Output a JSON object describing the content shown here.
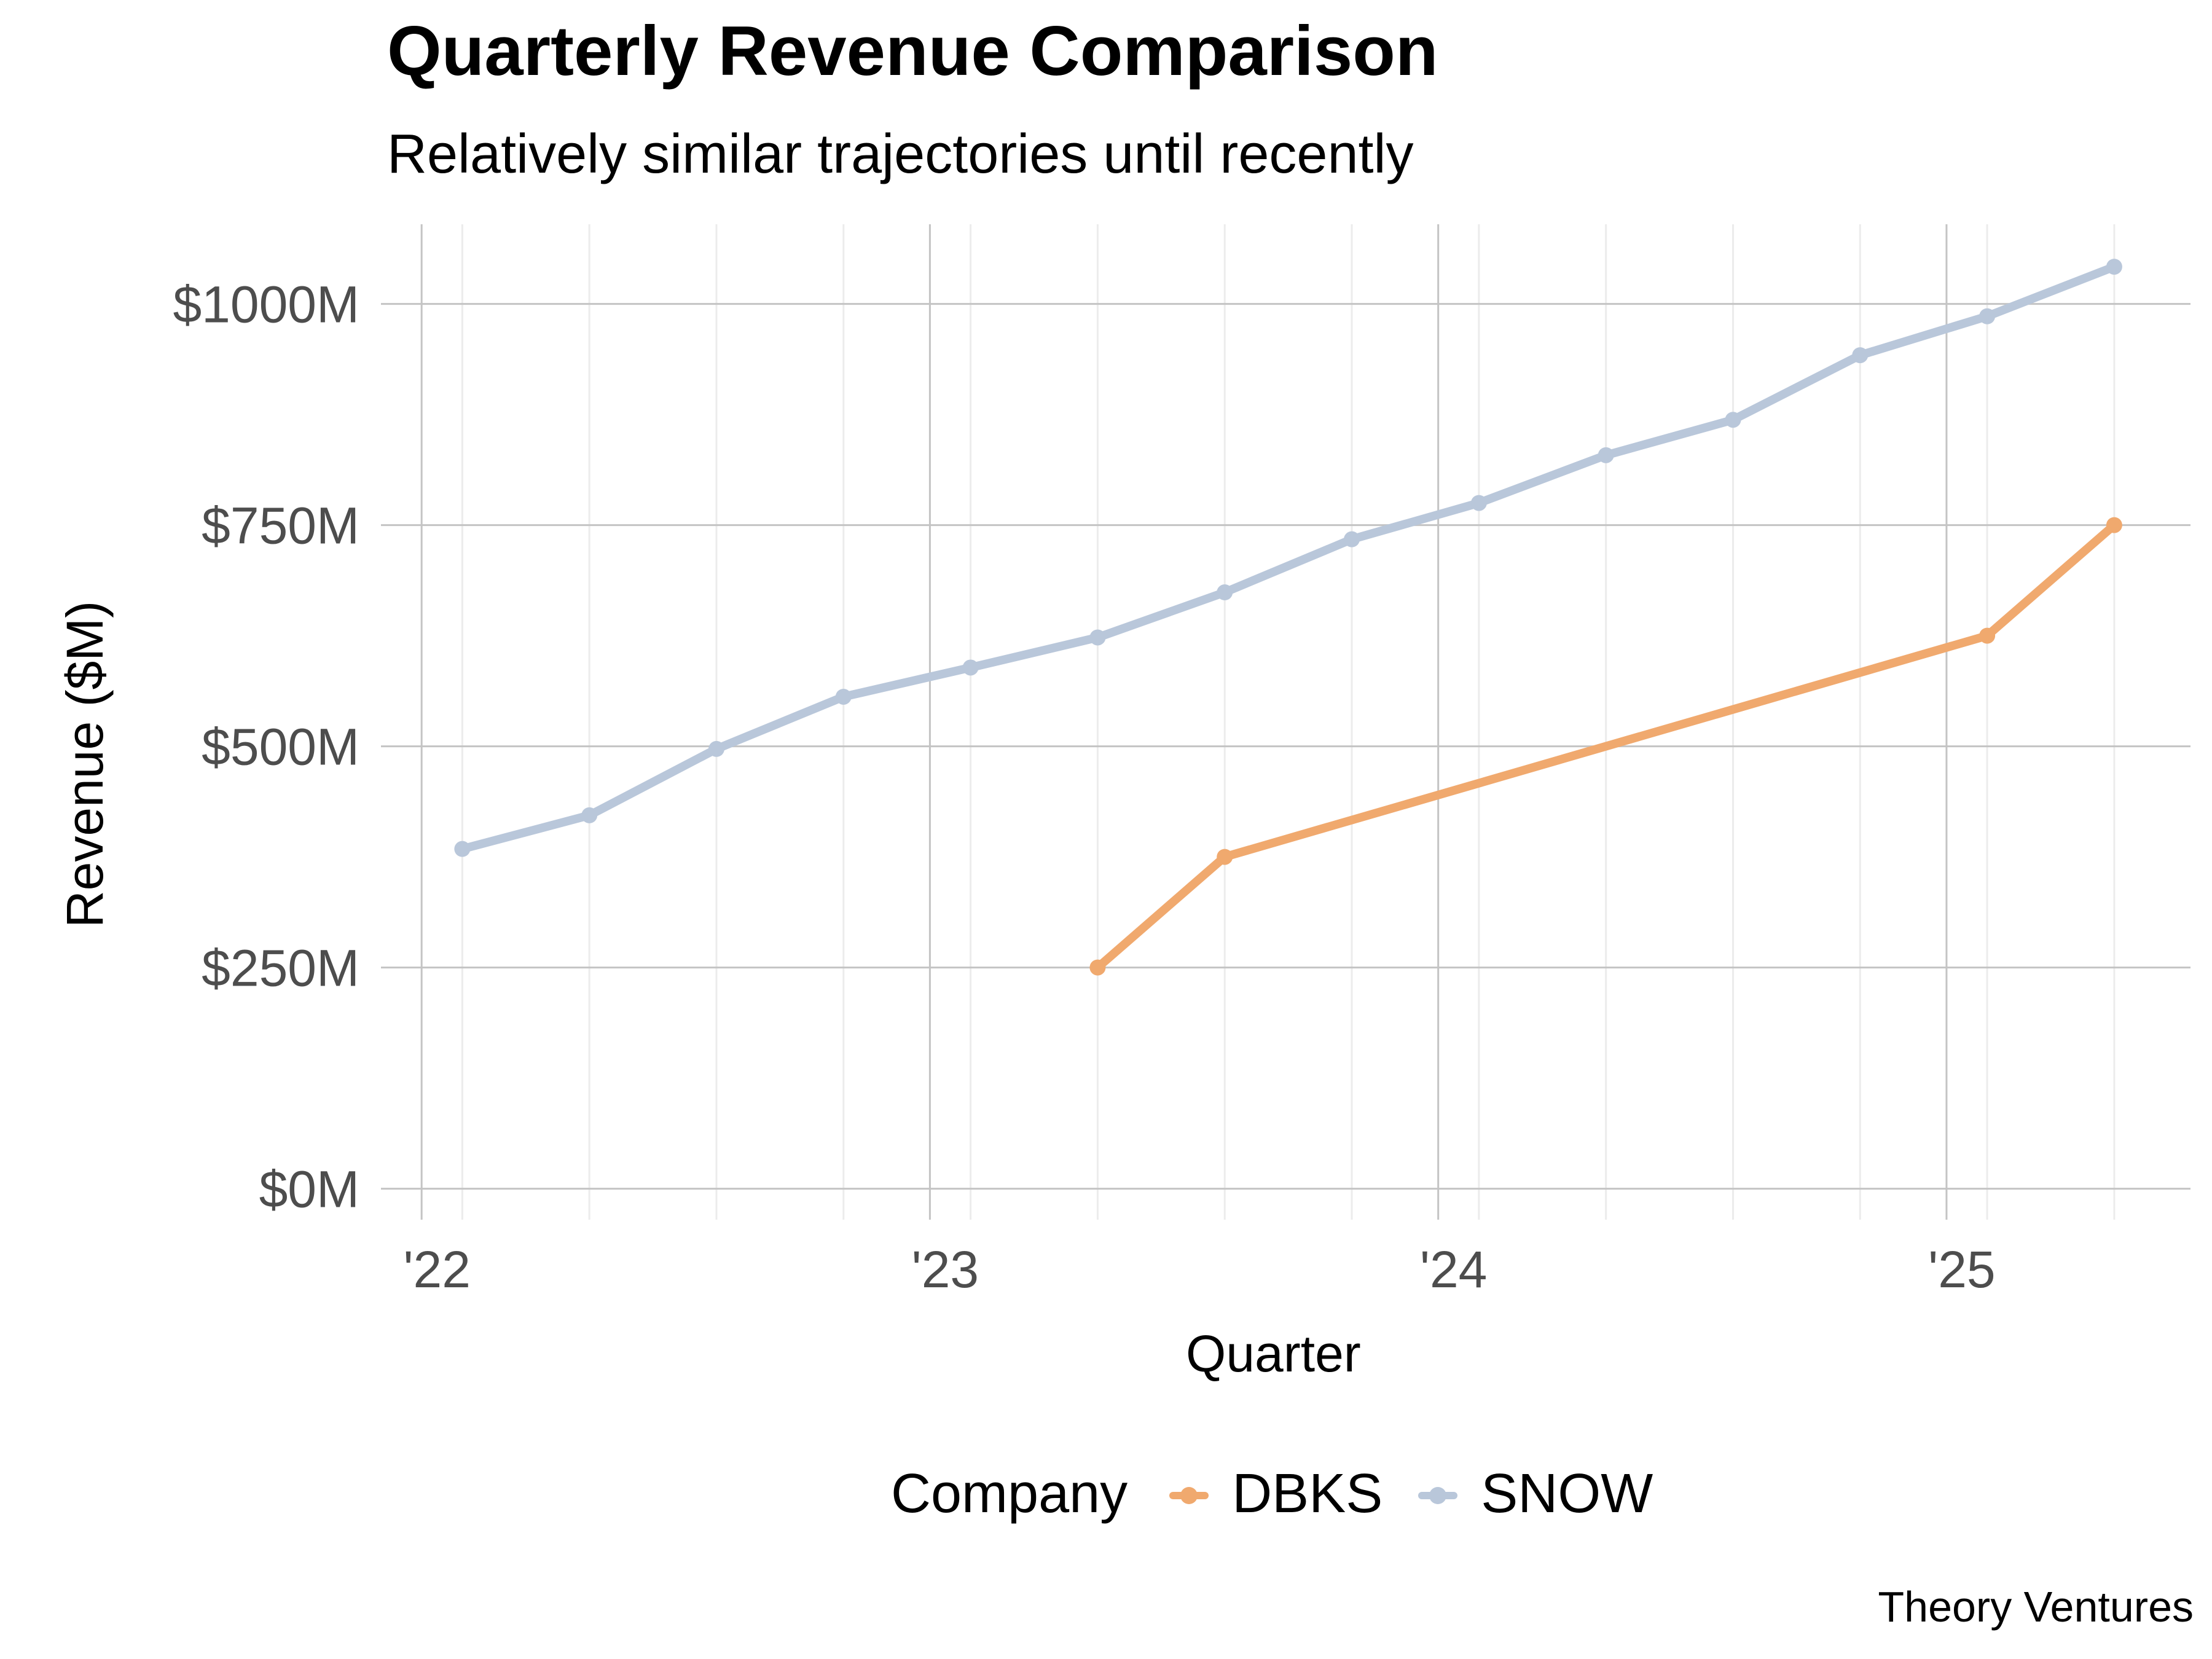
{
  "chart_data": {
    "type": "line",
    "title": "Quarterly Revenue Comparison",
    "subtitle": "Relatively similar trajectories until recently",
    "xlabel": "Quarter",
    "ylabel": "Revenue ($M)",
    "ylim": [
      -35,
      1090
    ],
    "xlim": [
      2021.92,
      2025.48
    ],
    "y_ticks": [
      0,
      250,
      500,
      750,
      1000
    ],
    "y_tick_labels": [
      "$0M",
      "$250M",
      "$500M",
      "$750M",
      "$1000M"
    ],
    "x_ticks": [
      2022,
      2023,
      2024,
      2025
    ],
    "x_tick_labels": [
      "'22",
      "'23",
      "'24",
      "'25"
    ],
    "x_minor_ticks": [
      2022.08,
      2022.33,
      2022.58,
      2022.83,
      2023.08,
      2023.33,
      2023.58,
      2023.83,
      2024.08,
      2024.33,
      2024.58,
      2024.83,
      2025.08,
      2025.33
    ],
    "grid": true,
    "legend_title": "Company",
    "legend_position": "bottom",
    "series": [
      {
        "name": "DBKS",
        "color": "#f0a96e",
        "x": [
          2023.33,
          2023.58,
          2025.08,
          2025.33
        ],
        "values": [
          250,
          375,
          625,
          750
        ]
      },
      {
        "name": "SNOW",
        "color": "#b9c7da",
        "x": [
          2022.08,
          2022.33,
          2022.58,
          2022.83,
          2023.08,
          2023.33,
          2023.58,
          2023.83,
          2024.08,
          2024.33,
          2024.58,
          2024.83,
          2025.08,
          2025.33
        ],
        "values": [
          384,
          422,
          497,
          556,
          589,
          623,
          674,
          734,
          775,
          829,
          869,
          942,
          986,
          1042
        ]
      }
    ]
  },
  "credit": "Theory Ventures"
}
